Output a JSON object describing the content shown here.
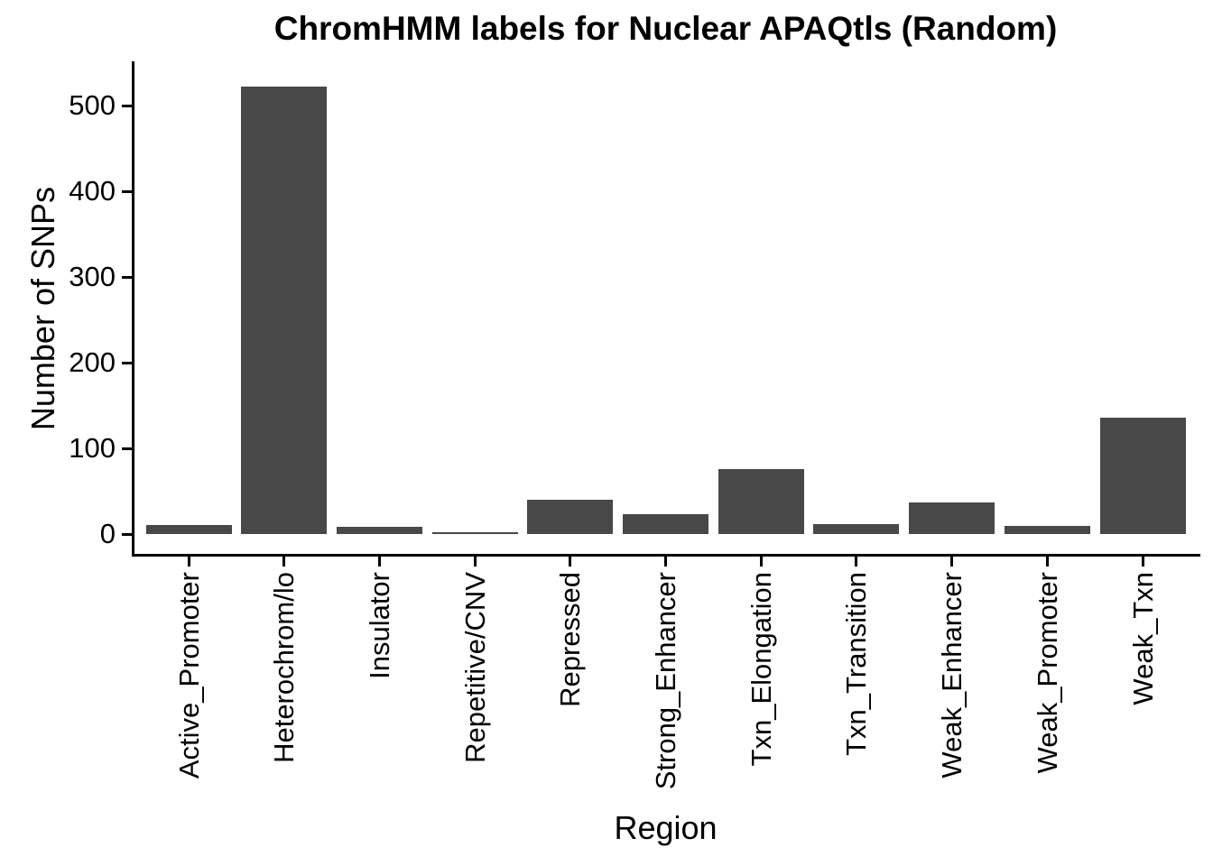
{
  "chart_data": {
    "type": "bar",
    "title": "ChromHMM labels for Nuclear APAQtls (Random)",
    "xlabel": "Region",
    "ylabel": "Number of SNPs",
    "categories": [
      "Active_Promoter",
      "Heterochrom/lo",
      "Insulator",
      "Repetitive/CNV",
      "Repressed",
      "Strong_Enhancer",
      "Txn_Elongation",
      "Txn_Transition",
      "Weak_Enhancer",
      "Weak_Promoter",
      "Weak_Txn"
    ],
    "values": [
      10,
      522,
      8,
      2,
      40,
      23,
      76,
      12,
      37,
      9,
      136
    ],
    "yticks": [
      0,
      100,
      200,
      300,
      400,
      500
    ],
    "ylim": [
      0,
      550
    ],
    "grid": false,
    "legend": "none",
    "bar_color": "#484848",
    "axis_color": "#000000",
    "text_color": "#000000",
    "background_color": "#ffffff"
  }
}
